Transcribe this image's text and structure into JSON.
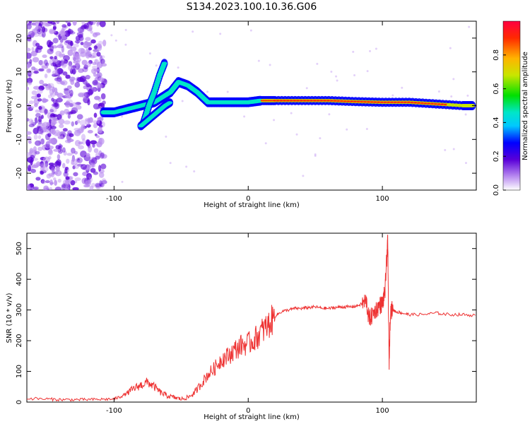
{
  "figure": {
    "title": "S134.2023.100.10.36.G06"
  },
  "chart_data": [
    {
      "type": "heatmap",
      "xlabel": "Height of straight line (km)",
      "ylabel": "Frequency (Hz)",
      "xlim": [
        -165,
        170
      ],
      "ylim": [
        -25,
        25
      ],
      "xticks": [
        -100,
        0,
        100
      ],
      "yticks": [
        -20,
        -10,
        0,
        10,
        20
      ],
      "colorbar": {
        "label": "Normalized spectral amplitude",
        "range": [
          0,
          1
        ],
        "ticks": [
          "0.0",
          "0.2",
          "0.4",
          "0.6",
          "0.8"
        ],
        "colormap": [
          "#ffffff",
          "#b98cf0",
          "#5a00d8",
          "#0000ff",
          "#00c8ff",
          "#00e6c8",
          "#00e000",
          "#c8e600",
          "#ffb400",
          "#ff2a00",
          "#ff0040"
        ]
      },
      "features": [
        {
          "name": "noise",
          "x": [
            -165,
            -107
          ],
          "y": [
            -25,
            25
          ]
        },
        {
          "name": "rising branch",
          "x": [
            -78,
            -60
          ],
          "y": [
            -5,
            13
          ]
        },
        {
          "name": "main trace",
          "x": [
            -110,
            170
          ],
          "y": [
            -2,
            8
          ]
        }
      ],
      "trace": {
        "x": [
          -108,
          -100,
          -90,
          -80,
          -70,
          -62,
          -58,
          -52,
          -45,
          -38,
          -30,
          -20,
          -10,
          0,
          10,
          20,
          40,
          60,
          80,
          100,
          120,
          140,
          160,
          168
        ],
        "y": [
          -2,
          -2,
          -1,
          0,
          1,
          3,
          4,
          7,
          6,
          4,
          1,
          1,
          1,
          1,
          1.5,
          1.5,
          1.5,
          1.5,
          1.2,
          1,
          1,
          0.5,
          0,
          0
        ]
      },
      "branch": {
        "x": [
          -78,
          -74,
          -70,
          -66,
          -62
        ],
        "y": [
          -5,
          0,
          4,
          9,
          13
        ]
      },
      "lower_branch": {
        "x": [
          -80,
          -74,
          -68,
          -62,
          -58
        ],
        "y": [
          -6,
          -4,
          -2,
          0,
          1
        ]
      }
    },
    {
      "type": "line",
      "xlabel": "Height of straight line (km)",
      "ylabel": "SNR (10 * v/v)",
      "xlim": [
        -165,
        170
      ],
      "ylim": [
        0,
        550
      ],
      "xticks": [
        -100,
        0,
        100
      ],
      "yticks": [
        0,
        100,
        200,
        300,
        400,
        500
      ],
      "color": "#ee3333",
      "series": [
        {
          "x": [
            -165,
            -150,
            -140,
            -130,
            -120,
            -110,
            -100,
            -95,
            -90,
            -85,
            -80,
            -75,
            -70,
            -65,
            -60,
            -55,
            -50,
            -45,
            -40,
            -35,
            -30,
            -25,
            -20,
            -15,
            -10,
            -5,
            0,
            5,
            10,
            15,
            20,
            25,
            30,
            35,
            40,
            45,
            50,
            55,
            60,
            65,
            70,
            75,
            80,
            85,
            88,
            90,
            92,
            95,
            98,
            100,
            102,
            103,
            104,
            105,
            106,
            108,
            110,
            115,
            120,
            130,
            140,
            150,
            160,
            170
          ],
          "y": [
            12,
            10,
            8,
            8,
            8,
            9,
            10,
            18,
            30,
            45,
            55,
            65,
            50,
            30,
            20,
            15,
            10,
            15,
            30,
            60,
            90,
            110,
            140,
            150,
            170,
            185,
            190,
            205,
            230,
            250,
            280,
            295,
            300,
            305,
            305,
            308,
            310,
            306,
            305,
            308,
            310,
            310,
            312,
            320,
            330,
            270,
            280,
            300,
            315,
            320,
            360,
            450,
            520,
            120,
            300,
            300,
            295,
            290,
            285,
            285,
            290,
            285,
            285,
            282
          ]
        }
      ]
    }
  ]
}
